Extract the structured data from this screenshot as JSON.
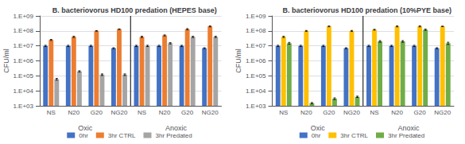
{
  "chart_data": [
    {
      "type": "bar",
      "title": "B. bacteriovorus HD100 predation (HEPES base)",
      "ylabel": "CFU/ml",
      "categories": [
        "NS",
        "N20",
        "G20",
        "NG20",
        "NS",
        "N20",
        "G20",
        "NG20"
      ],
      "groups": [
        "Oxic",
        "Anoxic"
      ],
      "series": [
        {
          "name": "0hr",
          "color": "#4472C4",
          "values": [
            10000000,
            10000000,
            10000000,
            7000000,
            10000000,
            10000000,
            10000000,
            7000000
          ],
          "errors": [
            1000000,
            1000000,
            1000000,
            500000,
            1000000,
            1000000,
            1000000,
            500000
          ]
        },
        {
          "name": "3hr CTRL",
          "color": "#ED7D31",
          "values": [
            25000000,
            40000000,
            100000000,
            130000000,
            40000000,
            50000000,
            130000000,
            200000000
          ],
          "errors": [
            2000000,
            4000000,
            4000000,
            6000000,
            4000000,
            4000000,
            12000000,
            15000000
          ]
        },
        {
          "name": "3hr Predated",
          "color": "#A5A5A5",
          "values": [
            60000,
            200000,
            120000,
            120000,
            10000000,
            15000000,
            40000000,
            40000000
          ],
          "errors": [
            8000,
            20000,
            15000,
            15000,
            1000000,
            1500000,
            4000000,
            4000000
          ]
        }
      ],
      "ylim": [
        1000,
        1000000000
      ],
      "yticks": [
        {
          "value": 1000,
          "label": "1.E+03"
        },
        {
          "value": 10000,
          "label": "1.E+04"
        },
        {
          "value": 100000,
          "label": "1.E+05"
        },
        {
          "value": 1000000,
          "label": "1.E+06"
        },
        {
          "value": 10000000,
          "label": "1.E+07"
        },
        {
          "value": 100000000,
          "label": "1.E+08"
        },
        {
          "value": 1000000000,
          "label": "1.E+09"
        }
      ],
      "log": "y",
      "grid": true,
      "legend": "bottom"
    },
    {
      "type": "bar",
      "title": "B. bacteriovorus HD100 predation (10%PYE base)",
      "ylabel": "CFU/ml",
      "categories": [
        "NS",
        "N20",
        "G20",
        "NG20",
        "NS",
        "N20",
        "G20",
        "NG20"
      ],
      "groups": [
        "Oxic",
        "Anoxic"
      ],
      "series": [
        {
          "name": "0hr",
          "color": "#4472C4",
          "values": [
            10000000,
            10000000,
            10000000,
            7000000,
            10000000,
            10000000,
            10000000,
            7000000
          ],
          "errors": [
            1000000,
            1000000,
            1000000,
            500000,
            1000000,
            1000000,
            1000000,
            500000
          ]
        },
        {
          "name": "3hr CTRL",
          "color": "#FFC000",
          "values": [
            40000000,
            100000000,
            200000000,
            100000000,
            120000000,
            200000000,
            200000000,
            200000000
          ],
          "errors": [
            4000000,
            7000000,
            12000000,
            7000000,
            8000000,
            15000000,
            15000000,
            8000000
          ]
        },
        {
          "name": "3hr Predated",
          "color": "#70AD47",
          "values": [
            15000000,
            1500,
            3000,
            4000,
            20000000,
            20000000,
            120000000,
            15000000
          ],
          "errors": [
            2000000,
            150,
            400,
            400,
            2500000,
            2500000,
            12000000,
            2500000
          ]
        }
      ],
      "ylim": [
        1000,
        1000000000
      ],
      "yticks": [
        {
          "value": 1000,
          "label": "1.E+03"
        },
        {
          "value": 10000,
          "label": "1.E+04"
        },
        {
          "value": 100000,
          "label": "1.E+05"
        },
        {
          "value": 1000000,
          "label": "1.E+06"
        },
        {
          "value": 10000000,
          "label": "1.E+07"
        },
        {
          "value": 100000000,
          "label": "1.E+08"
        },
        {
          "value": 1000000000,
          "label": "1.E+09"
        }
      ],
      "log": "y",
      "grid": true,
      "legend": "bottom"
    }
  ]
}
